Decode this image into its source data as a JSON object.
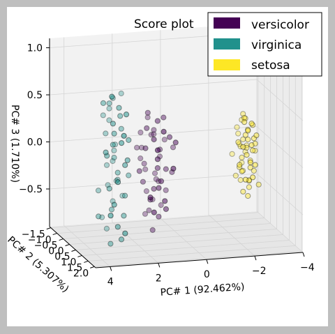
{
  "chart_data": {
    "type": "scatter",
    "projection": "3d",
    "title": "Score plot",
    "xlabel": "PC# 1 (92.462%)",
    "ylabel": "PC# 2 (5.307%)",
    "zlabel": "PC# 3 (1.710%)",
    "xlim": [
      -4,
      4.6
    ],
    "ylim": [
      -1.6,
      2.1
    ],
    "zlim": [
      -0.9,
      1.1
    ],
    "x_ticks": [
      "4",
      "2",
      "0",
      "−2",
      "−4"
    ],
    "y_ticks": [
      "−1.5",
      "−1.0",
      "−0.5",
      "0.0",
      "0.5",
      "1.0",
      "1.5",
      "2.0"
    ],
    "z_ticks": [
      "1.0",
      "0.5",
      "0.0",
      "−0.5"
    ],
    "legend": {
      "placement": "top-right",
      "entries": [
        {
          "label": "versicolor",
          "color": "#440154"
        },
        {
          "label": "virginica",
          "color": "#21918c"
        },
        {
          "label": "setosa",
          "color": "#fde725"
        }
      ]
    },
    "series": [
      {
        "name": "versicolor",
        "color": "#440154",
        "points": [
          [
            1.4,
            0.1,
            0.45
          ],
          [
            1.2,
            -0.3,
            0.35
          ],
          [
            1.5,
            0.2,
            0.3
          ],
          [
            1.1,
            0.0,
            0.25
          ],
          [
            1.3,
            0.4,
            0.2
          ],
          [
            1.0,
            -0.2,
            0.18
          ],
          [
            1.6,
            0.3,
            0.1
          ],
          [
            0.9,
            0.1,
            0.05
          ],
          [
            1.4,
            -0.4,
            0.02
          ],
          [
            1.2,
            0.5,
            0.0
          ],
          [
            0.8,
            -0.1,
            -0.05
          ],
          [
            1.5,
            0.0,
            -0.1
          ],
          [
            1.1,
            0.3,
            -0.12
          ],
          [
            0.7,
            0.2,
            -0.15
          ],
          [
            1.3,
            -0.3,
            -0.2
          ],
          [
            1.0,
            0.4,
            -0.25
          ],
          [
            1.6,
            0.1,
            -0.28
          ],
          [
            0.9,
            -0.2,
            -0.3
          ],
          [
            1.2,
            0.2,
            -0.35
          ],
          [
            0.6,
            0.0,
            -0.4
          ],
          [
            1.4,
            0.3,
            -0.45
          ],
          [
            1.1,
            -0.1,
            -0.5
          ],
          [
            0.8,
            0.4,
            -0.55
          ],
          [
            1.3,
            0.0,
            -0.6
          ],
          [
            1.0,
            0.2,
            -0.65
          ],
          [
            0.5,
            -0.3,
            0.1
          ],
          [
            0.4,
            0.1,
            -0.2
          ],
          [
            0.6,
            0.3,
            0.2
          ],
          [
            1.7,
            -0.2,
            0.05
          ],
          [
            1.5,
            0.5,
            -0.4
          ],
          [
            0.3,
            0.0,
            0.05
          ],
          [
            0.7,
            -0.4,
            -0.35
          ],
          [
            1.0,
            0.6,
            0.3
          ],
          [
            1.8,
            0.2,
            -0.15
          ],
          [
            0.9,
            0.5,
            -0.45
          ],
          [
            1.2,
            -0.5,
            -0.7
          ],
          [
            1.5,
            -0.3,
            -0.08
          ],
          [
            0.6,
            0.6,
            -0.1
          ],
          [
            1.3,
            0.7,
            0.12
          ],
          [
            0.8,
            0.2,
            0.4
          ],
          [
            1.1,
            0.4,
            -0.32
          ],
          [
            1.0,
            -0.4,
            0.15
          ],
          [
            1.4,
            0.6,
            -0.55
          ],
          [
            0.7,
            -0.2,
            -0.58
          ],
          [
            1.6,
            -0.1,
            0.22
          ],
          [
            0.4,
            0.4,
            0.15
          ],
          [
            1.2,
            0.1,
            -0.8
          ],
          [
            0.9,
            -0.3,
            -0.25
          ],
          [
            1.1,
            0.3,
            0.38
          ],
          [
            1.3,
            -0.2,
            -0.42
          ]
        ]
      },
      {
        "name": "virginica",
        "color": "#21918c",
        "points": [
          [
            2.7,
            0.3,
            0.55
          ],
          [
            2.9,
            -0.1,
            0.5
          ],
          [
            2.6,
            0.2,
            0.45
          ],
          [
            3.0,
            0.4,
            0.4
          ],
          [
            2.8,
            -0.3,
            0.35
          ],
          [
            2.5,
            0.1,
            0.3
          ],
          [
            3.1,
            0.0,
            0.25
          ],
          [
            2.7,
            0.5,
            0.2
          ],
          [
            2.9,
            0.2,
            0.15
          ],
          [
            2.6,
            -0.2,
            0.1
          ],
          [
            3.2,
            0.3,
            0.05
          ],
          [
            2.8,
            0.1,
            0.0
          ],
          [
            2.5,
            0.4,
            -0.05
          ],
          [
            3.0,
            -0.1,
            -0.1
          ],
          [
            2.7,
            0.2,
            -0.15
          ],
          [
            2.9,
            0.6,
            -0.2
          ],
          [
            2.6,
            0.0,
            -0.25
          ],
          [
            3.1,
            0.3,
            -0.3
          ],
          [
            2.8,
            -0.4,
            -0.35
          ],
          [
            2.4,
            0.2,
            -0.4
          ],
          [
            3.0,
            0.5,
            -0.45
          ],
          [
            2.7,
            -0.2,
            -0.5
          ],
          [
            2.9,
            0.1,
            -0.55
          ],
          [
            2.5,
            0.3,
            -0.6
          ],
          [
            3.2,
            -0.1,
            -0.65
          ],
          [
            2.8,
            0.4,
            -0.7
          ],
          [
            2.6,
            0.6,
            -0.75
          ],
          [
            3.3,
            0.2,
            0.6
          ],
          [
            2.4,
            -0.1,
            0.65
          ],
          [
            3.1,
            0.5,
            0.7
          ],
          [
            2.3,
            0.3,
            0.2
          ],
          [
            3.4,
            0.0,
            -0.35
          ],
          [
            2.2,
            0.1,
            -0.2
          ],
          [
            3.3,
            0.4,
            0.1
          ],
          [
            2.9,
            -0.3,
            -0.8
          ],
          [
            2.5,
            0.5,
            0.5
          ],
          [
            3.0,
            0.2,
            -0.9
          ],
          [
            2.7,
            0.7,
            0.3
          ],
          [
            2.6,
            -0.4,
            -0.1
          ],
          [
            3.2,
            0.6,
            -0.55
          ],
          [
            2.8,
            0.0,
            0.62
          ],
          [
            2.4,
            0.4,
            0.0
          ],
          [
            3.5,
            0.2,
            -0.6
          ],
          [
            2.9,
            0.3,
            0.28
          ],
          [
            2.3,
            -0.2,
            -0.45
          ],
          [
            3.1,
            -0.2,
            0.42
          ],
          [
            2.6,
            0.3,
            -0.85
          ],
          [
            2.7,
            -0.1,
            0.05
          ],
          [
            3.0,
            0.1,
            0.58
          ],
          [
            2.5,
            -0.3,
            -0.3
          ]
        ]
      },
      {
        "name": "setosa",
        "color": "#fde725",
        "points": [
          [
            -2.7,
            0.2,
            0.1
          ],
          [
            -2.6,
            0.0,
            0.08
          ],
          [
            -2.8,
            0.3,
            0.05
          ],
          [
            -2.5,
            -0.1,
            0.02
          ],
          [
            -2.7,
            0.1,
            0.0
          ],
          [
            -2.9,
            0.2,
            -0.02
          ],
          [
            -2.6,
            0.3,
            -0.05
          ],
          [
            -2.8,
            -0.2,
            -0.08
          ],
          [
            -2.5,
            0.1,
            -0.1
          ],
          [
            -2.7,
            0.4,
            -0.12
          ],
          [
            -2.9,
            0.0,
            -0.15
          ],
          [
            -2.6,
            -0.1,
            -0.18
          ],
          [
            -2.8,
            0.2,
            -0.2
          ],
          [
            -2.4,
            0.3,
            -0.22
          ],
          [
            -3.0,
            0.1,
            -0.25
          ],
          [
            -2.7,
            -0.2,
            -0.28
          ],
          [
            -2.5,
            0.4,
            -0.3
          ],
          [
            -2.9,
            0.3,
            0.12
          ],
          [
            -2.6,
            0.2,
            0.15
          ],
          [
            -2.8,
            0.0,
            0.18
          ],
          [
            -2.4,
            -0.1,
            0.2
          ],
          [
            -3.0,
            0.2,
            0.05
          ],
          [
            -2.7,
            0.3,
            -0.32
          ],
          [
            -2.5,
            0.0,
            -0.35
          ],
          [
            -2.9,
            -0.1,
            -0.38
          ],
          [
            -2.6,
            0.4,
            0.22
          ],
          [
            -2.8,
            0.1,
            -0.42
          ],
          [
            -2.3,
            0.2,
            0.08
          ],
          [
            -3.1,
            0.0,
            -0.05
          ],
          [
            -2.7,
            -0.3,
            0.25
          ],
          [
            -2.5,
            0.3,
            0.3
          ],
          [
            -2.9,
            0.4,
            -0.15
          ],
          [
            -2.6,
            -0.2,
            -0.02
          ],
          [
            -2.8,
            0.3,
            0.28
          ],
          [
            -2.4,
            0.1,
            -0.2
          ],
          [
            -3.0,
            0.3,
            0.15
          ],
          [
            -2.7,
            0.0,
            0.3
          ],
          [
            -2.5,
            0.2,
            -0.45
          ],
          [
            -2.2,
            -0.1,
            -0.08
          ],
          [
            -2.6,
            0.1,
            0.32
          ],
          [
            -2.8,
            0.4,
            -0.28
          ],
          [
            -2.3,
            0.0,
            -0.3
          ],
          [
            -3.2,
            0.1,
            -0.4
          ],
          [
            -2.9,
            0.2,
            0.25
          ],
          [
            -2.4,
            0.4,
            0.05
          ],
          [
            -2.7,
            0.2,
            -0.5
          ],
          [
            -2.6,
            0.0,
            0.35
          ],
          [
            -2.5,
            -0.2,
            0.12
          ],
          [
            -2.8,
            -0.1,
            0.0
          ],
          [
            -2.3,
            0.3,
            -0.15
          ]
        ]
      }
    ]
  }
}
